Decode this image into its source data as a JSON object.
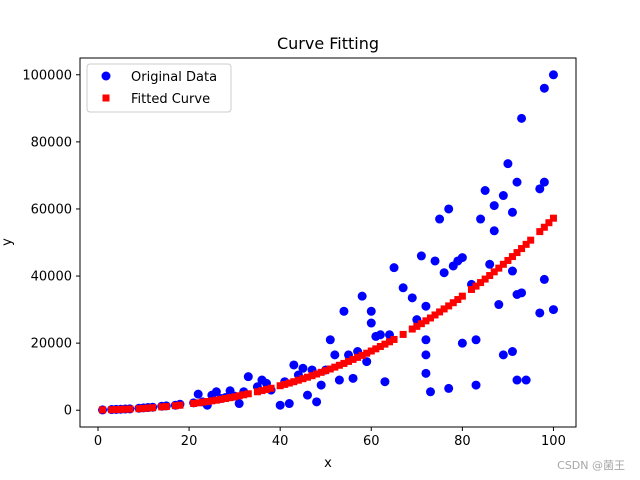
{
  "chart_data": {
    "type": "scatter",
    "title": "Curve Fitting",
    "xlabel": "x",
    "ylabel": "y",
    "xlim": [
      -3.95,
      104.95
    ],
    "ylim": [
      -5000,
      105000
    ],
    "xticks": [
      0,
      20,
      40,
      60,
      80,
      100
    ],
    "yticks": [
      0,
      20000,
      40000,
      60000,
      80000,
      100000
    ],
    "grid": false,
    "legend_position": "top-left",
    "series": [
      {
        "name": "Original Data",
        "marker": "circle",
        "color": "#0000ff",
        "points": [
          [
            1,
            100
          ],
          [
            3,
            200
          ],
          [
            4,
            250
          ],
          [
            5,
            300
          ],
          [
            6,
            350
          ],
          [
            7,
            400
          ],
          [
            9,
            600
          ],
          [
            10,
            700
          ],
          [
            11,
            800
          ],
          [
            12,
            900
          ],
          [
            14,
            1200
          ],
          [
            15,
            1300
          ],
          [
            17,
            1500
          ],
          [
            18,
            1800
          ],
          [
            21,
            2200
          ],
          [
            22,
            4800
          ],
          [
            23,
            2500
          ],
          [
            24,
            1500
          ],
          [
            25,
            4500
          ],
          [
            26,
            5500
          ],
          [
            27,
            3500
          ],
          [
            28,
            3800
          ],
          [
            29,
            5800
          ],
          [
            30,
            4200
          ],
          [
            31,
            2000
          ],
          [
            32,
            5500
          ],
          [
            33,
            10000
          ],
          [
            35,
            7000
          ],
          [
            36,
            9000
          ],
          [
            37,
            8000
          ],
          [
            38,
            6000
          ],
          [
            40,
            1500
          ],
          [
            41,
            8500
          ],
          [
            42,
            2000
          ],
          [
            43,
            13500
          ],
          [
            44,
            10500
          ],
          [
            45,
            12500
          ],
          [
            46,
            4500
          ],
          [
            47,
            12000
          ],
          [
            48,
            2500
          ],
          [
            49,
            7500
          ],
          [
            50,
            12000
          ],
          [
            51,
            21000
          ],
          [
            52,
            16500
          ],
          [
            53,
            9000
          ],
          [
            54,
            29500
          ],
          [
            55,
            16500
          ],
          [
            56,
            9500
          ],
          [
            57,
            17500
          ],
          [
            58,
            34000
          ],
          [
            59,
            14500
          ],
          [
            60,
            26000
          ],
          [
            60,
            29500
          ],
          [
            61,
            22000
          ],
          [
            62,
            22500
          ],
          [
            63,
            8500
          ],
          [
            64,
            22500
          ],
          [
            65,
            42500
          ],
          [
            67,
            36500
          ],
          [
            69,
            33500
          ],
          [
            70,
            27000
          ],
          [
            71,
            46000
          ],
          [
            72,
            31000
          ],
          [
            72,
            21000
          ],
          [
            72,
            16500
          ],
          [
            72,
            11000
          ],
          [
            73,
            5500
          ],
          [
            74,
            44500
          ],
          [
            75,
            57000
          ],
          [
            76,
            41000
          ],
          [
            77,
            60000
          ],
          [
            77,
            6500
          ],
          [
            78,
            43000
          ],
          [
            79,
            44500
          ],
          [
            80,
            45500
          ],
          [
            80,
            20000
          ],
          [
            82,
            37500
          ],
          [
            83,
            21000
          ],
          [
            83,
            7500
          ],
          [
            84,
            57000
          ],
          [
            85,
            65500
          ],
          [
            86,
            43500
          ],
          [
            87,
            61000
          ],
          [
            87,
            53500
          ],
          [
            88,
            31500
          ],
          [
            89,
            64000
          ],
          [
            89,
            16500
          ],
          [
            90,
            73500
          ],
          [
            91,
            59000
          ],
          [
            91,
            41500
          ],
          [
            91,
            17500
          ],
          [
            92,
            68000
          ],
          [
            92,
            34500
          ],
          [
            92,
            9000
          ],
          [
            93,
            87000
          ],
          [
            93,
            35000
          ],
          [
            94,
            9000
          ],
          [
            97,
            66000
          ],
          [
            97,
            29000
          ],
          [
            98,
            96000
          ],
          [
            98,
            68000
          ],
          [
            98,
            39000
          ],
          [
            100,
            100000
          ],
          [
            100,
            30000
          ]
        ]
      },
      {
        "name": "Fitted Curve",
        "marker": "square",
        "color": "#ff0000",
        "points": [
          [
            1,
            100
          ],
          [
            3,
            150
          ],
          [
            4,
            200
          ],
          [
            5,
            250
          ],
          [
            6,
            300
          ],
          [
            7,
            350
          ],
          [
            9,
            450
          ],
          [
            10,
            550
          ],
          [
            11,
            650
          ],
          [
            12,
            750
          ],
          [
            14,
            1000
          ],
          [
            15,
            1100
          ],
          [
            17,
            1350
          ],
          [
            18,
            1500
          ],
          [
            21,
            2000
          ],
          [
            22,
            2200
          ],
          [
            23,
            2400
          ],
          [
            24,
            2600
          ],
          [
            25,
            2800
          ],
          [
            26,
            3000
          ],
          [
            27,
            3250
          ],
          [
            28,
            3500
          ],
          [
            29,
            3750
          ],
          [
            30,
            4000
          ],
          [
            31,
            4300
          ],
          [
            32,
            4600
          ],
          [
            33,
            4900
          ],
          [
            35,
            5500
          ],
          [
            36,
            5850
          ],
          [
            37,
            6200
          ],
          [
            38,
            6550
          ],
          [
            40,
            7300
          ],
          [
            41,
            7700
          ],
          [
            42,
            8100
          ],
          [
            43,
            8500
          ],
          [
            44,
            8950
          ],
          [
            45,
            9400
          ],
          [
            46,
            9850
          ],
          [
            47,
            10300
          ],
          [
            48,
            10800
          ],
          [
            49,
            11300
          ],
          [
            50,
            11800
          ],
          [
            51,
            12300
          ],
          [
            52,
            12850
          ],
          [
            53,
            13400
          ],
          [
            54,
            13950
          ],
          [
            55,
            14550
          ],
          [
            56,
            15150
          ],
          [
            57,
            15750
          ],
          [
            58,
            16350
          ],
          [
            59,
            17000
          ],
          [
            60,
            17650
          ],
          [
            61,
            18300
          ],
          [
            62,
            19000
          ],
          [
            63,
            19700
          ],
          [
            64,
            20400
          ],
          [
            65,
            21100
          ],
          [
            67,
            22600
          ],
          [
            69,
            24200
          ],
          [
            70,
            25000
          ],
          [
            71,
            25800
          ],
          [
            72,
            26650
          ],
          [
            73,
            27500
          ],
          [
            74,
            28400
          ],
          [
            75,
            29300
          ],
          [
            76,
            30200
          ],
          [
            77,
            31100
          ],
          [
            78,
            32050
          ],
          [
            79,
            33000
          ],
          [
            80,
            34000
          ],
          [
            82,
            36000
          ],
          [
            83,
            37000
          ],
          [
            84,
            38050
          ],
          [
            85,
            39100
          ],
          [
            86,
            40150
          ],
          [
            87,
            41250
          ],
          [
            88,
            42350
          ],
          [
            89,
            43500
          ],
          [
            90,
            44650
          ],
          [
            91,
            45800
          ],
          [
            92,
            47000
          ],
          [
            93,
            48200
          ],
          [
            94,
            49450
          ],
          [
            95,
            50700
          ],
          [
            97,
            53250
          ],
          [
            98,
            54550
          ],
          [
            99,
            55900
          ],
          [
            100,
            57250
          ]
        ]
      }
    ]
  },
  "watermark": "CSDN @菌王"
}
